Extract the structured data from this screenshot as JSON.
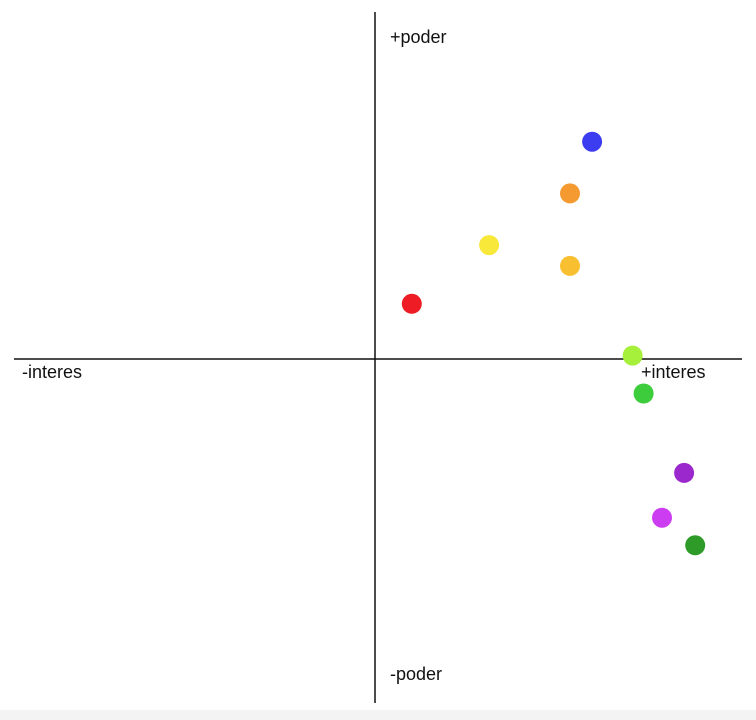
{
  "labels": {
    "top": "+poder",
    "bottom": "-poder",
    "left": "-interes",
    "right": "+interes"
  },
  "chart_data": {
    "type": "scatter",
    "xlim": [
      -1,
      1
    ],
    "ylim": [
      -1,
      1
    ],
    "xlabel_positive": "+interes",
    "xlabel_negative": "-interes",
    "ylabel_positive": "+poder",
    "ylabel_negative": "-poder",
    "grid": false,
    "points": [
      {
        "x": 0.59,
        "y": 0.63,
        "color": "#3c3cf0"
      },
      {
        "x": 0.53,
        "y": 0.48,
        "color": "#f59a30"
      },
      {
        "x": 0.31,
        "y": 0.33,
        "color": "#f8e83a"
      },
      {
        "x": 0.53,
        "y": 0.27,
        "color": "#f8c030"
      },
      {
        "x": 0.1,
        "y": 0.16,
        "color": "#ee1c24"
      },
      {
        "x": 0.7,
        "y": 0.01,
        "color": "#a6f03c"
      },
      {
        "x": 0.73,
        "y": -0.1,
        "color": "#3ccc3c"
      },
      {
        "x": 0.84,
        "y": -0.33,
        "color": "#9a28cc"
      },
      {
        "x": 0.78,
        "y": -0.46,
        "color": "#cc3cf0"
      },
      {
        "x": 0.87,
        "y": -0.54,
        "color": "#2e9a28"
      }
    ]
  }
}
